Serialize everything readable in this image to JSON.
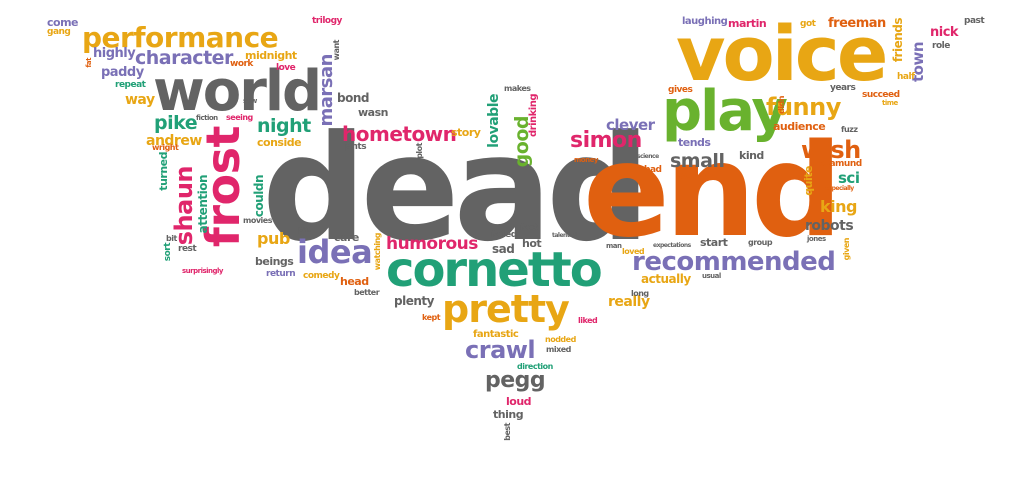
{
  "colors": {
    "gray": "#636363",
    "orange": "#e06010",
    "yellow": "#e8a614",
    "green": "#69b22e",
    "teal": "#21a077",
    "pink": "#e0266b",
    "purple": "#7a70b6"
  },
  "words": {
    "dead": "dead",
    "end": "end",
    "voice": "voice",
    "cornetto": "cornetto",
    "world": "world",
    "play": "play",
    "performance": "performance",
    "frost": "frost",
    "pretty": "pretty",
    "recommended": "recommended",
    "idea": "idea",
    "funny": "funny",
    "hometown": "hometown",
    "crawl": "crawl",
    "simon": "simon",
    "shaun": "shaun",
    "wish": "wish",
    "pegg": "pegg",
    "character": "character",
    "night": "night",
    "pike": "pike",
    "humorous": "humorous",
    "small": "small",
    "clever": "clever",
    "good": "good",
    "marsan": "marsan",
    "paddy": "paddy",
    "highly": "highly",
    "way": "way",
    "andrew": "andrew",
    "pub": "pub",
    "king": "king",
    "sci": "sci",
    "robots": "robots",
    "lovable": "lovable",
    "freeman": "freeman",
    "friends": "friends",
    "town": "town",
    "nick": "nick",
    "martin": "martin",
    "laughing": "laughing",
    "got": "got",
    "past": "past",
    "role": "role",
    "half": "half",
    "come": "come",
    "gang": "gang",
    "trilogy": "trilogy",
    "midnight": "midnight",
    "work": "work",
    "love": "love",
    "want": "want",
    "repeat": "repeat",
    "fat": "fat",
    "saw": "saw",
    "fiction": "fiction",
    "seeing": "seeing",
    "bond": "bond",
    "wasn": "wasn",
    "story": "story",
    "makes": "makes",
    "drinking": "drinking",
    "consider": "conside",
    "pints": "pints",
    "plot": "plot",
    "wright": "wright",
    "turned": "turned",
    "attention": "attention",
    "couldn": "couldn",
    "movies": "movies",
    "paul": "paul",
    "care": "care",
    "bit": "bit",
    "sort": "sort",
    "rest": "rest",
    "surprisingly": "surprisingly",
    "beings": "beings",
    "return": "return",
    "comedy": "comedy",
    "head": "head",
    "watching": "watching",
    "better": "better",
    "plenty": "plenty",
    "kept": "kept",
    "failed": "failed",
    "sad": "sad",
    "hot": "hot",
    "fact": "fact",
    "talented": "talented",
    "really": "really",
    "liked": "liked",
    "fantastic": "fantastic",
    "nodded": "nodded",
    "mixed": "mixed",
    "direction": "direction",
    "loud": "loud",
    "thing": "thing",
    "best": "best",
    "money": "money",
    "man": "man",
    "loved": "loved",
    "science": "science",
    "bad": "bad",
    "action": "action",
    "tends": "tends",
    "gives": "gives",
    "kind": "kind",
    "quite": "quite",
    "rosamund": "rosamund",
    "expectations": "expectations",
    "start": "start",
    "group": "group",
    "usual": "usual",
    "long": "long",
    "actually": "actually",
    "jones": "jones",
    "given": "given",
    "didn": "didn",
    "audience": "audience",
    "fuzz": "fuzz",
    "years": "years",
    "succeed": "succeed",
    "time": "time",
    "especially": "especially"
  }
}
